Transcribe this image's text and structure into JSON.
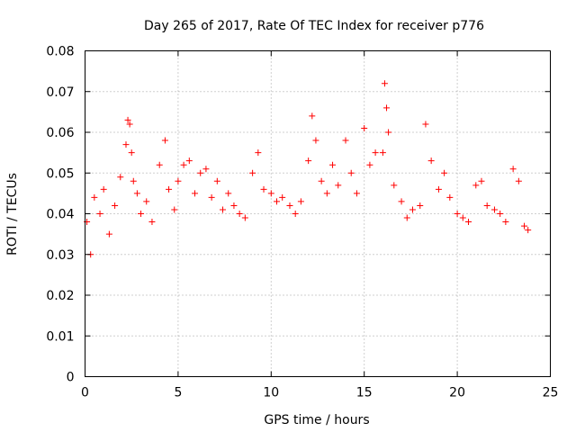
{
  "chart_data": {
    "type": "scatter",
    "title": "Day 265 of 2017, Rate Of TEC Index for receiver p776",
    "xlabel": "GPS time / hours",
    "ylabel": "ROTI / TECUs",
    "xlim": [
      0,
      25
    ],
    "ylim": [
      0,
      0.08
    ],
    "xticks": [
      "0",
      "5",
      "10",
      "15",
      "20",
      "25"
    ],
    "yticks": [
      "0",
      "0.01",
      "0.02",
      "0.03",
      "0.04",
      "0.05",
      "0.06",
      "0.07",
      "0.08"
    ],
    "grid": true,
    "marker": "plus",
    "color": "#ff0000",
    "series": [
      {
        "x": [
          0.1,
          0.3,
          0.5,
          0.8,
          1.0,
          1.3,
          1.6,
          1.9,
          2.2,
          2.3,
          2.4,
          2.5,
          2.6,
          2.8,
          3.0,
          3.3,
          3.6,
          4.0,
          4.3,
          4.5,
          4.8,
          5.0,
          5.3,
          5.6,
          5.9,
          6.2,
          6.5,
          6.8,
          7.1,
          7.4,
          7.7,
          8.0,
          8.3,
          8.6,
          9.0,
          9.3,
          9.6,
          10.0,
          10.3,
          10.6,
          11.0,
          11.3,
          11.6,
          12.0,
          12.2,
          12.4,
          12.7,
          13.0,
          13.3,
          13.6,
          14.0,
          14.3,
          14.6,
          15.0,
          15.3,
          15.6,
          16.0,
          16.1,
          16.2,
          16.3,
          16.6,
          17.0,
          17.3,
          17.6,
          18.0,
          18.3,
          18.6,
          19.0,
          19.3,
          19.6,
          20.0,
          20.3,
          20.6,
          21.0,
          21.3,
          21.6,
          22.0,
          22.3,
          22.6,
          23.0,
          23.3,
          23.6,
          23.8
        ],
        "y": [
          0.038,
          0.03,
          0.044,
          0.04,
          0.046,
          0.035,
          0.042,
          0.049,
          0.057,
          0.063,
          0.062,
          0.055,
          0.048,
          0.045,
          0.04,
          0.043,
          0.038,
          0.052,
          0.058,
          0.046,
          0.041,
          0.048,
          0.052,
          0.053,
          0.045,
          0.05,
          0.051,
          0.044,
          0.048,
          0.041,
          0.045,
          0.042,
          0.04,
          0.039,
          0.05,
          0.055,
          0.046,
          0.045,
          0.043,
          0.044,
          0.042,
          0.04,
          0.043,
          0.053,
          0.064,
          0.058,
          0.048,
          0.045,
          0.052,
          0.047,
          0.058,
          0.05,
          0.045,
          0.061,
          0.052,
          0.055,
          0.055,
          0.072,
          0.066,
          0.06,
          0.047,
          0.043,
          0.039,
          0.041,
          0.042,
          0.062,
          0.053,
          0.046,
          0.05,
          0.044,
          0.04,
          0.039,
          0.038,
          0.047,
          0.048,
          0.042,
          0.041,
          0.04,
          0.038,
          0.051,
          0.048,
          0.037,
          0.036
        ]
      }
    ]
  }
}
